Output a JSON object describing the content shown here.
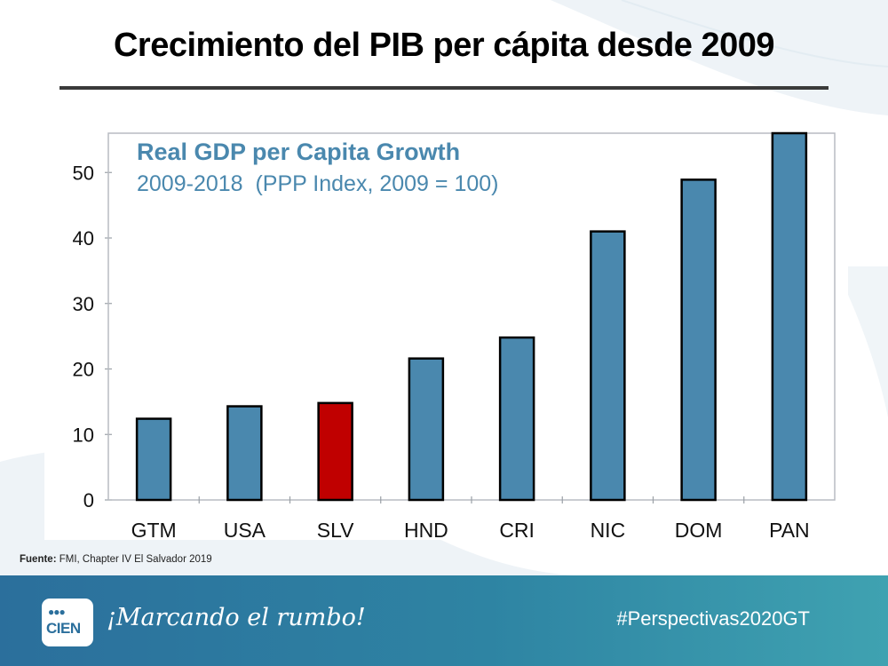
{
  "slide": {
    "title": "Crecimiento del PIB per cápita desde 2009",
    "source_label": "Fuente:",
    "source_text": " FMI, Chapter IV El Salvador 2019"
  },
  "footer": {
    "logo_circles": "●●●",
    "logo_text": "CIEN",
    "slogan": "¡Marcando el rumbo!",
    "hashtag": "#Perspectivas2020GT"
  },
  "colors": {
    "bar_default": "#4a88ae",
    "bar_highlight": "#c00000",
    "title_blue": "#4a88ae"
  },
  "chart_data": {
    "type": "bar",
    "title": "Real GDP per Capita Growth",
    "subtitle": "2009-2018  (PPP Index, 2009 = 100)",
    "categories": [
      "GTM",
      "USA",
      "SLV",
      "HND",
      "CRI",
      "NIC",
      "DOM",
      "PAN"
    ],
    "values": [
      12.4,
      14.3,
      14.8,
      21.6,
      24.8,
      41.0,
      48.9,
      56.0
    ],
    "highlight": "SLV",
    "ylim": [
      0,
      56
    ],
    "yticks": [
      0,
      10,
      20,
      30,
      40,
      50
    ],
    "xlabel": "",
    "ylabel": "",
    "grid": false
  }
}
